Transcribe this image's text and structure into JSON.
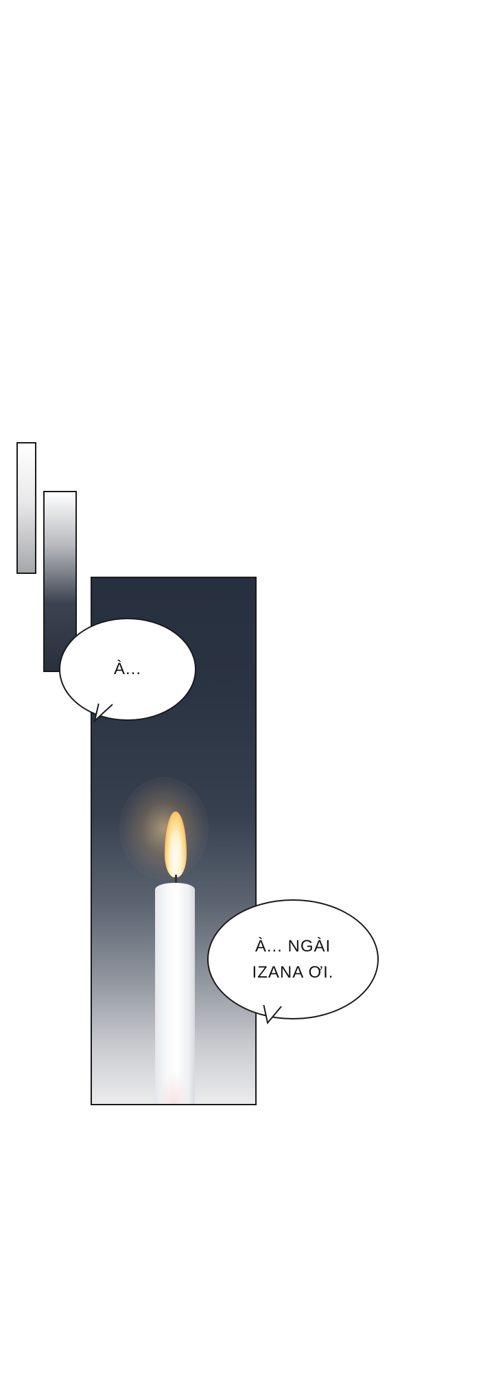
{
  "panels": [
    {
      "name": "small-gradient-panel-1"
    },
    {
      "name": "small-gradient-panel-2"
    },
    {
      "name": "candle-panel"
    }
  ],
  "dialogue": {
    "bubble_1": "À...",
    "bubble_2": "À... NGÀI\nIZANA ƠI."
  },
  "colors": {
    "panel_dark": "#27303f",
    "panel_light": "#ebebec",
    "flame": "#ffd27a",
    "candle": "#ffffff",
    "border": "#1a1a1a"
  }
}
